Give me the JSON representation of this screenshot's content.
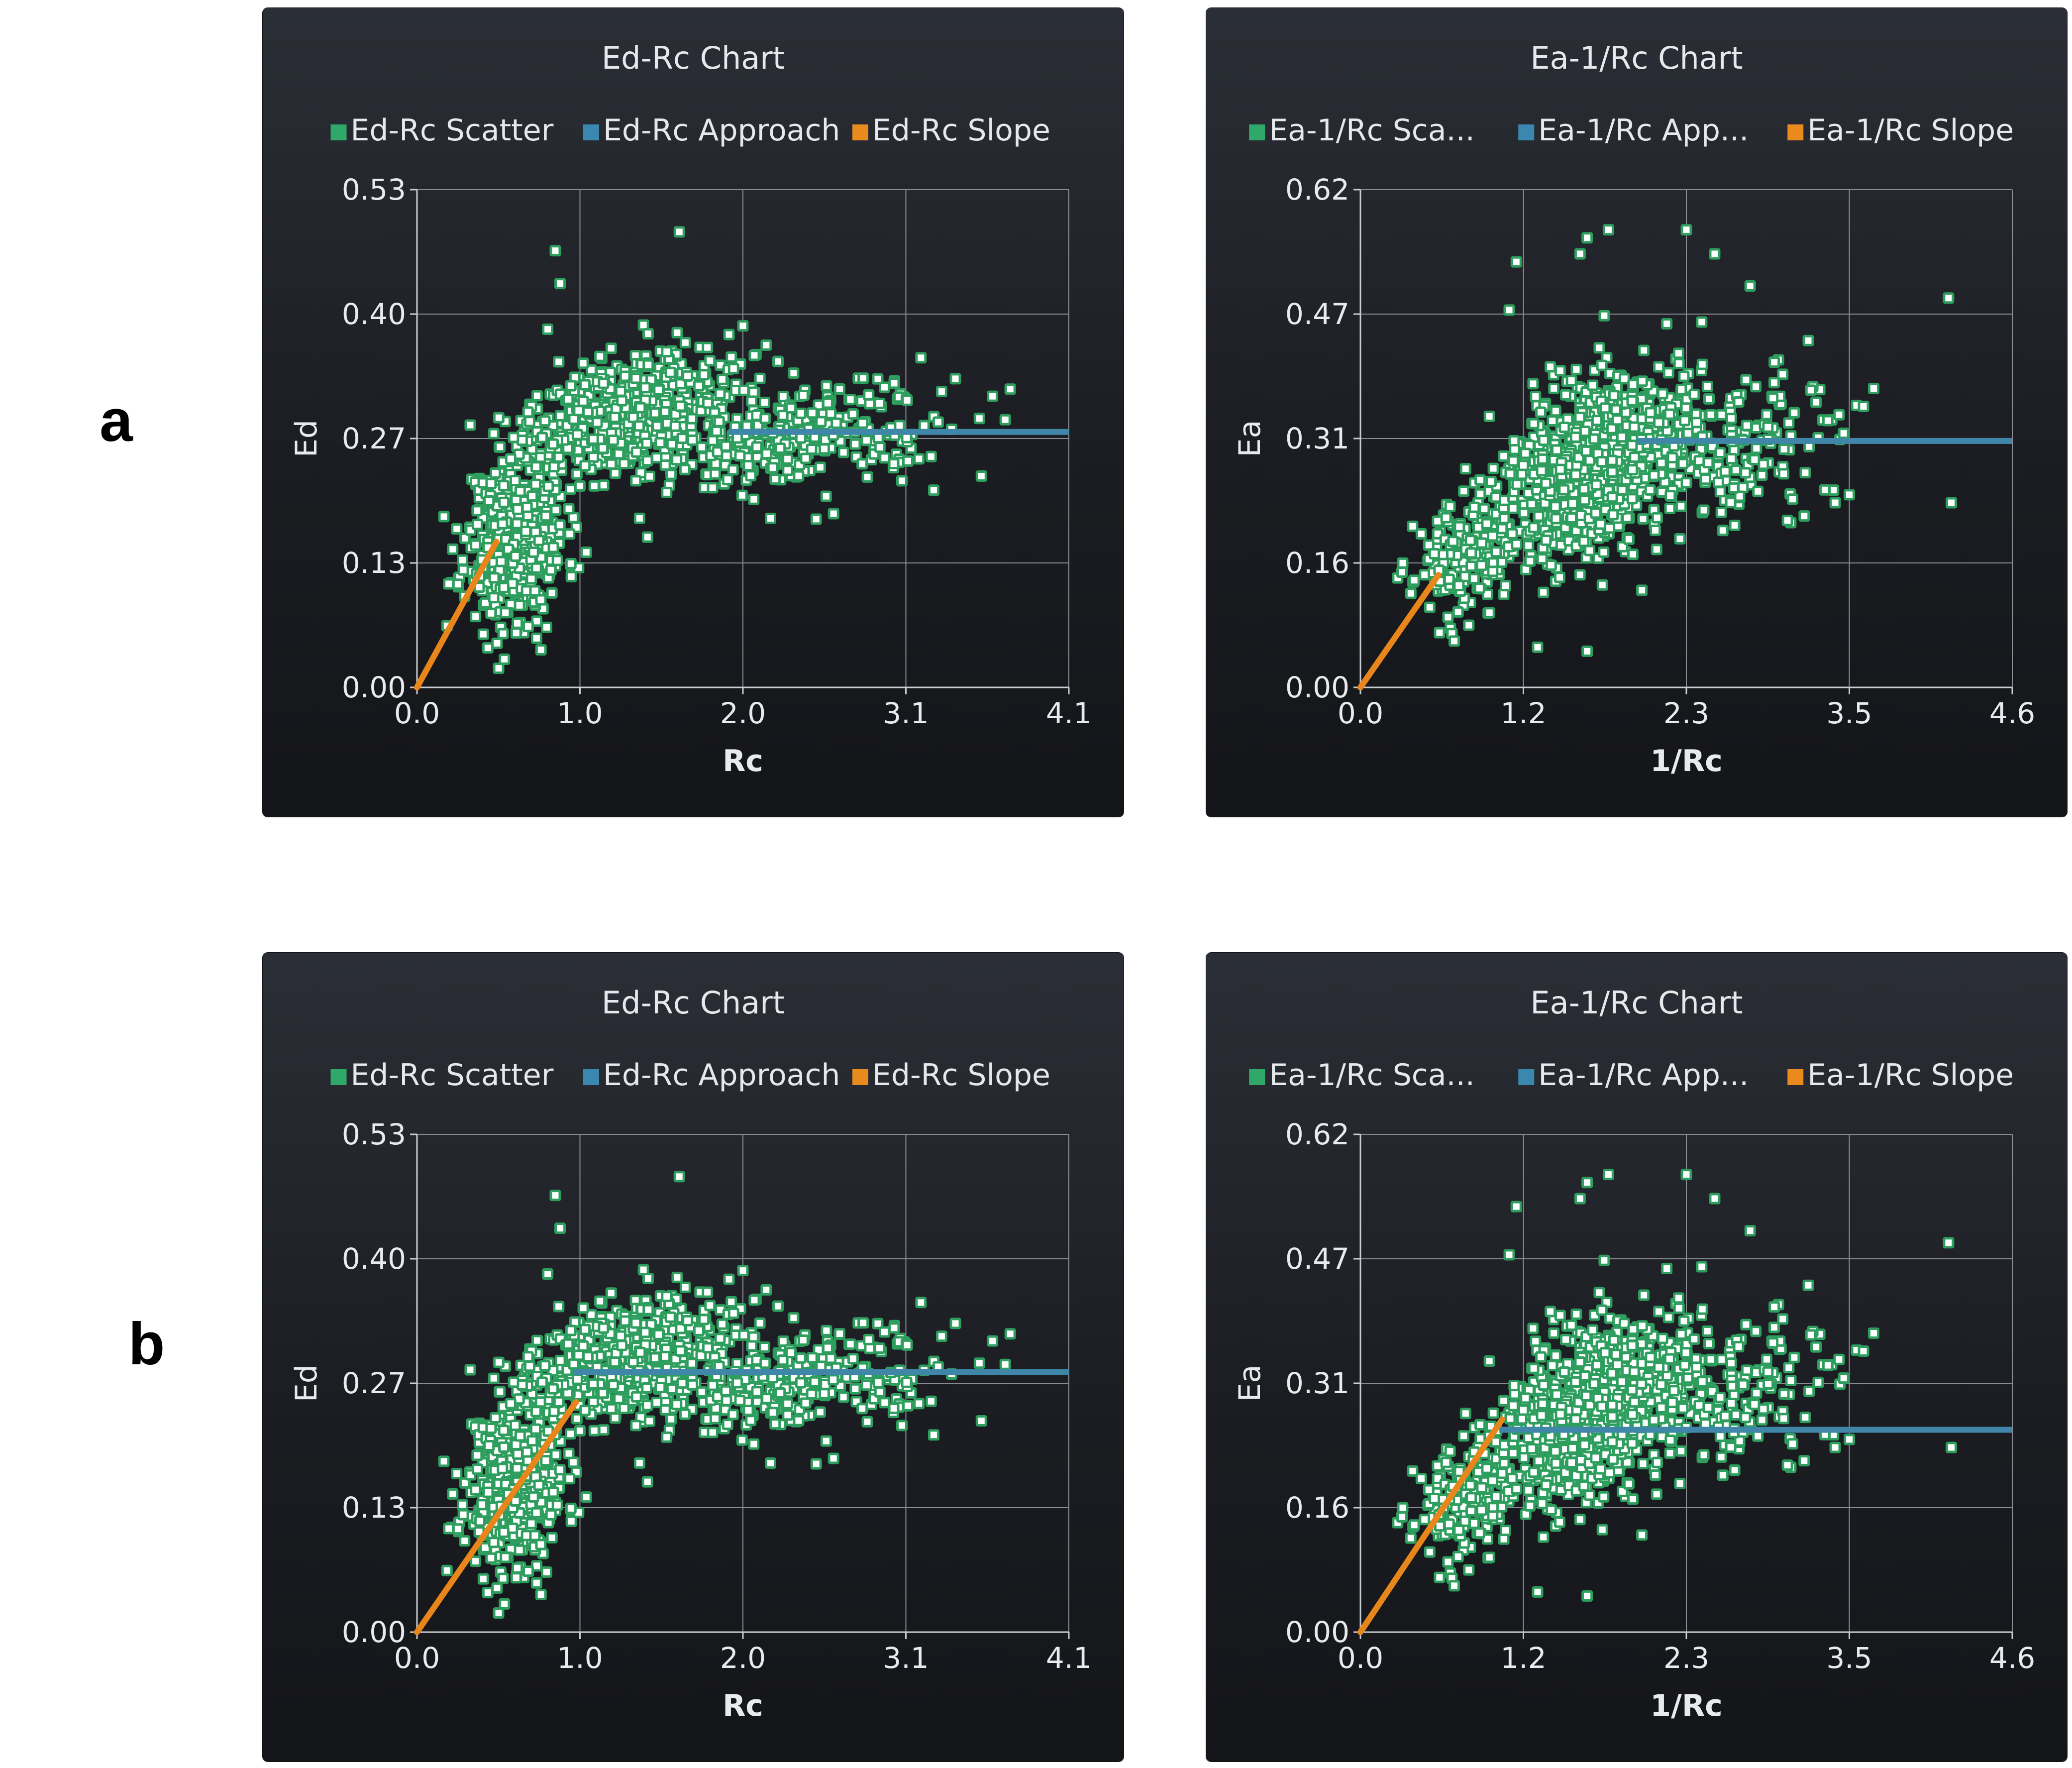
{
  "rows": [
    {
      "label": "a"
    },
    {
      "label": "b"
    }
  ],
  "colors": {
    "scatter_fill": "#ffffff",
    "scatter_edge": "#2e9e5e",
    "approach": "#3f86a8",
    "slope": "#e8861c",
    "grid": "#8a8d94",
    "legend_scatter": "#2fa86a",
    "legend_approach": "#3a88b0",
    "legend_slope": "#e88a1e"
  },
  "chart_data": [
    {
      "type": "scatter",
      "row": "a",
      "title": "Ed-Rc Chart",
      "xlabel": "Rc",
      "ylabel": "Ed",
      "legend": [
        "Ed-Rc Scatter",
        "Ed-Rc Approach",
        "Ed-Rc Slope"
      ],
      "legend_position": "top",
      "x_ticks": [
        "0.0",
        "1.0",
        "2.0",
        "3.1",
        "4.1"
      ],
      "y_ticks": [
        "0.00",
        "0.13",
        "0.27",
        "0.40",
        "0.53"
      ],
      "xlim": [
        0,
        4.1
      ],
      "ylim": [
        0,
        0.53
      ],
      "grid": true,
      "approach": {
        "x": [
          1.96,
          4.1
        ],
        "y": [
          0.272,
          0.272
        ]
      },
      "slope": {
        "x": [
          0.0,
          0.5
        ],
        "y": [
          0.0,
          0.155
        ]
      },
      "outliers": [
        [
          0.87,
          0.465
        ],
        [
          0.9,
          0.43
        ],
        [
          1.65,
          0.485
        ],
        [
          2.05,
          0.385
        ],
        [
          0.55,
          0.03
        ],
        [
          0.78,
          0.04
        ],
        [
          3.05,
          0.22
        ],
        [
          3.25,
          0.21
        ],
        [
          3.55,
          0.225
        ],
        [
          2.62,
          0.185
        ],
        [
          1.4,
          0.18
        ],
        [
          1.45,
          0.16
        ],
        [
          3.3,
          0.315
        ],
        [
          3.62,
          0.31
        ],
        [
          3.7,
          0.285
        ]
      ],
      "clusters": [
        {
          "cx": 0.62,
          "cy": 0.16,
          "sx": 0.16,
          "sy": 0.045,
          "n": 460
        },
        {
          "cx": 1.35,
          "cy": 0.29,
          "sx": 0.33,
          "sy": 0.03,
          "n": 620
        },
        {
          "cx": 2.35,
          "cy": 0.265,
          "sx": 0.3,
          "sy": 0.025,
          "n": 230
        },
        {
          "cx": 2.95,
          "cy": 0.26,
          "sx": 0.32,
          "sy": 0.03,
          "n": 45
        }
      ],
      "seed": 11
    },
    {
      "type": "scatter",
      "row": "a",
      "title": "Ea-1/Rc Chart",
      "xlabel": "1/Rc",
      "ylabel": "Ea",
      "legend": [
        "Ea-1/Rc Sca...",
        "Ea-1/Rc App...",
        "Ea-1/Rc Slope"
      ],
      "legend_position": "top",
      "x_ticks": [
        "0.0",
        "1.2",
        "2.3",
        "3.5",
        "4.6"
      ],
      "y_ticks": [
        "0.00",
        "0.16",
        "0.31",
        "0.47",
        "0.62"
      ],
      "xlim": [
        0,
        4.6
      ],
      "ylim": [
        0,
        0.62
      ],
      "grid": true,
      "approach": {
        "x": [
          1.95,
          4.6
        ],
        "y": [
          0.307,
          0.307
        ]
      },
      "slope": {
        "x": [
          0.0,
          0.55
        ],
        "y": [
          0.0,
          0.14
        ]
      },
      "outliers": [
        [
          1.1,
          0.53
        ],
        [
          1.05,
          0.47
        ],
        [
          1.55,
          0.54
        ],
        [
          1.6,
          0.56
        ],
        [
          1.75,
          0.57
        ],
        [
          2.3,
          0.57
        ],
        [
          2.5,
          0.54
        ],
        [
          2.75,
          0.5
        ],
        [
          4.15,
          0.485
        ],
        [
          4.17,
          0.23
        ],
        [
          1.6,
          0.045
        ],
        [
          1.25,
          0.05
        ],
        [
          3.45,
          0.24
        ],
        [
          3.35,
          0.23
        ],
        [
          3.55,
          0.35
        ]
      ],
      "clusters": [
        {
          "cx": 0.75,
          "cy": 0.165,
          "sx": 0.18,
          "sy": 0.035,
          "n": 200
        },
        {
          "cx": 1.45,
          "cy": 0.255,
          "sx": 0.22,
          "sy": 0.05,
          "n": 420
        },
        {
          "cx": 1.85,
          "cy": 0.29,
          "sx": 0.3,
          "sy": 0.055,
          "n": 520
        },
        {
          "cx": 2.7,
          "cy": 0.3,
          "sx": 0.35,
          "sy": 0.05,
          "n": 150
        }
      ],
      "seed": 23
    },
    {
      "type": "scatter",
      "row": "b",
      "title": "Ed-Rc Chart",
      "xlabel": "Rc",
      "ylabel": "Ed",
      "legend": [
        "Ed-Rc Scatter",
        "Ed-Rc Approach",
        "Ed-Rc Slope"
      ],
      "legend_position": "top",
      "x_ticks": [
        "0.0",
        "1.0",
        "2.0",
        "3.1",
        "4.1"
      ],
      "y_ticks": [
        "0.00",
        "0.13",
        "0.27",
        "0.40",
        "0.53"
      ],
      "xlim": [
        0,
        4.1
      ],
      "ylim": [
        0,
        0.53
      ],
      "grid": true,
      "approach": {
        "x": [
          0.98,
          4.1
        ],
        "y": [
          0.277,
          0.277
        ]
      },
      "slope": {
        "x": [
          0.0,
          1.0
        ],
        "y": [
          0.0,
          0.245
        ]
      },
      "outliers": [
        [
          0.87,
          0.465
        ],
        [
          0.9,
          0.43
        ],
        [
          1.65,
          0.485
        ],
        [
          2.05,
          0.385
        ],
        [
          0.55,
          0.03
        ],
        [
          0.78,
          0.04
        ],
        [
          3.05,
          0.22
        ],
        [
          3.25,
          0.21
        ],
        [
          3.55,
          0.225
        ],
        [
          2.62,
          0.185
        ],
        [
          1.4,
          0.18
        ],
        [
          1.45,
          0.16
        ],
        [
          3.3,
          0.315
        ],
        [
          3.62,
          0.31
        ],
        [
          3.7,
          0.285
        ]
      ],
      "clusters": [
        {
          "cx": 0.62,
          "cy": 0.16,
          "sx": 0.16,
          "sy": 0.045,
          "n": 460
        },
        {
          "cx": 1.35,
          "cy": 0.29,
          "sx": 0.33,
          "sy": 0.03,
          "n": 620
        },
        {
          "cx": 2.35,
          "cy": 0.265,
          "sx": 0.3,
          "sy": 0.025,
          "n": 230
        },
        {
          "cx": 2.95,
          "cy": 0.26,
          "sx": 0.32,
          "sy": 0.03,
          "n": 45
        }
      ],
      "seed": 11
    },
    {
      "type": "scatter",
      "row": "b",
      "title": "Ea-1/Rc Chart",
      "xlabel": "1/Rc",
      "ylabel": "Ea",
      "legend": [
        "Ea-1/Rc Sca...",
        "Ea-1/Rc App...",
        "Ea-1/Rc Slope"
      ],
      "legend_position": "top",
      "x_ticks": [
        "0.0",
        "1.2",
        "2.3",
        "3.5",
        "4.6"
      ],
      "y_ticks": [
        "0.00",
        "0.16",
        "0.31",
        "0.47",
        "0.62"
      ],
      "xlim": [
        0,
        4.6
      ],
      "ylim": [
        0,
        0.62
      ],
      "grid": true,
      "approach": {
        "x": [
          0.98,
          4.6
        ],
        "y": [
          0.252,
          0.252
        ]
      },
      "slope": {
        "x": [
          0.0,
          1.0
        ],
        "y": [
          0.0,
          0.265
        ]
      },
      "outliers": [
        [
          1.1,
          0.53
        ],
        [
          1.05,
          0.47
        ],
        [
          1.55,
          0.54
        ],
        [
          1.6,
          0.56
        ],
        [
          1.75,
          0.57
        ],
        [
          2.3,
          0.57
        ],
        [
          2.5,
          0.54
        ],
        [
          2.75,
          0.5
        ],
        [
          4.15,
          0.485
        ],
        [
          4.17,
          0.23
        ],
        [
          1.6,
          0.045
        ],
        [
          1.25,
          0.05
        ],
        [
          3.45,
          0.24
        ],
        [
          3.35,
          0.23
        ],
        [
          3.55,
          0.35
        ]
      ],
      "clusters": [
        {
          "cx": 0.75,
          "cy": 0.165,
          "sx": 0.18,
          "sy": 0.035,
          "n": 200
        },
        {
          "cx": 1.45,
          "cy": 0.255,
          "sx": 0.22,
          "sy": 0.05,
          "n": 420
        },
        {
          "cx": 1.85,
          "cy": 0.29,
          "sx": 0.3,
          "sy": 0.055,
          "n": 520
        },
        {
          "cx": 2.7,
          "cy": 0.3,
          "sx": 0.35,
          "sy": 0.05,
          "n": 150
        }
      ],
      "seed": 23
    }
  ]
}
